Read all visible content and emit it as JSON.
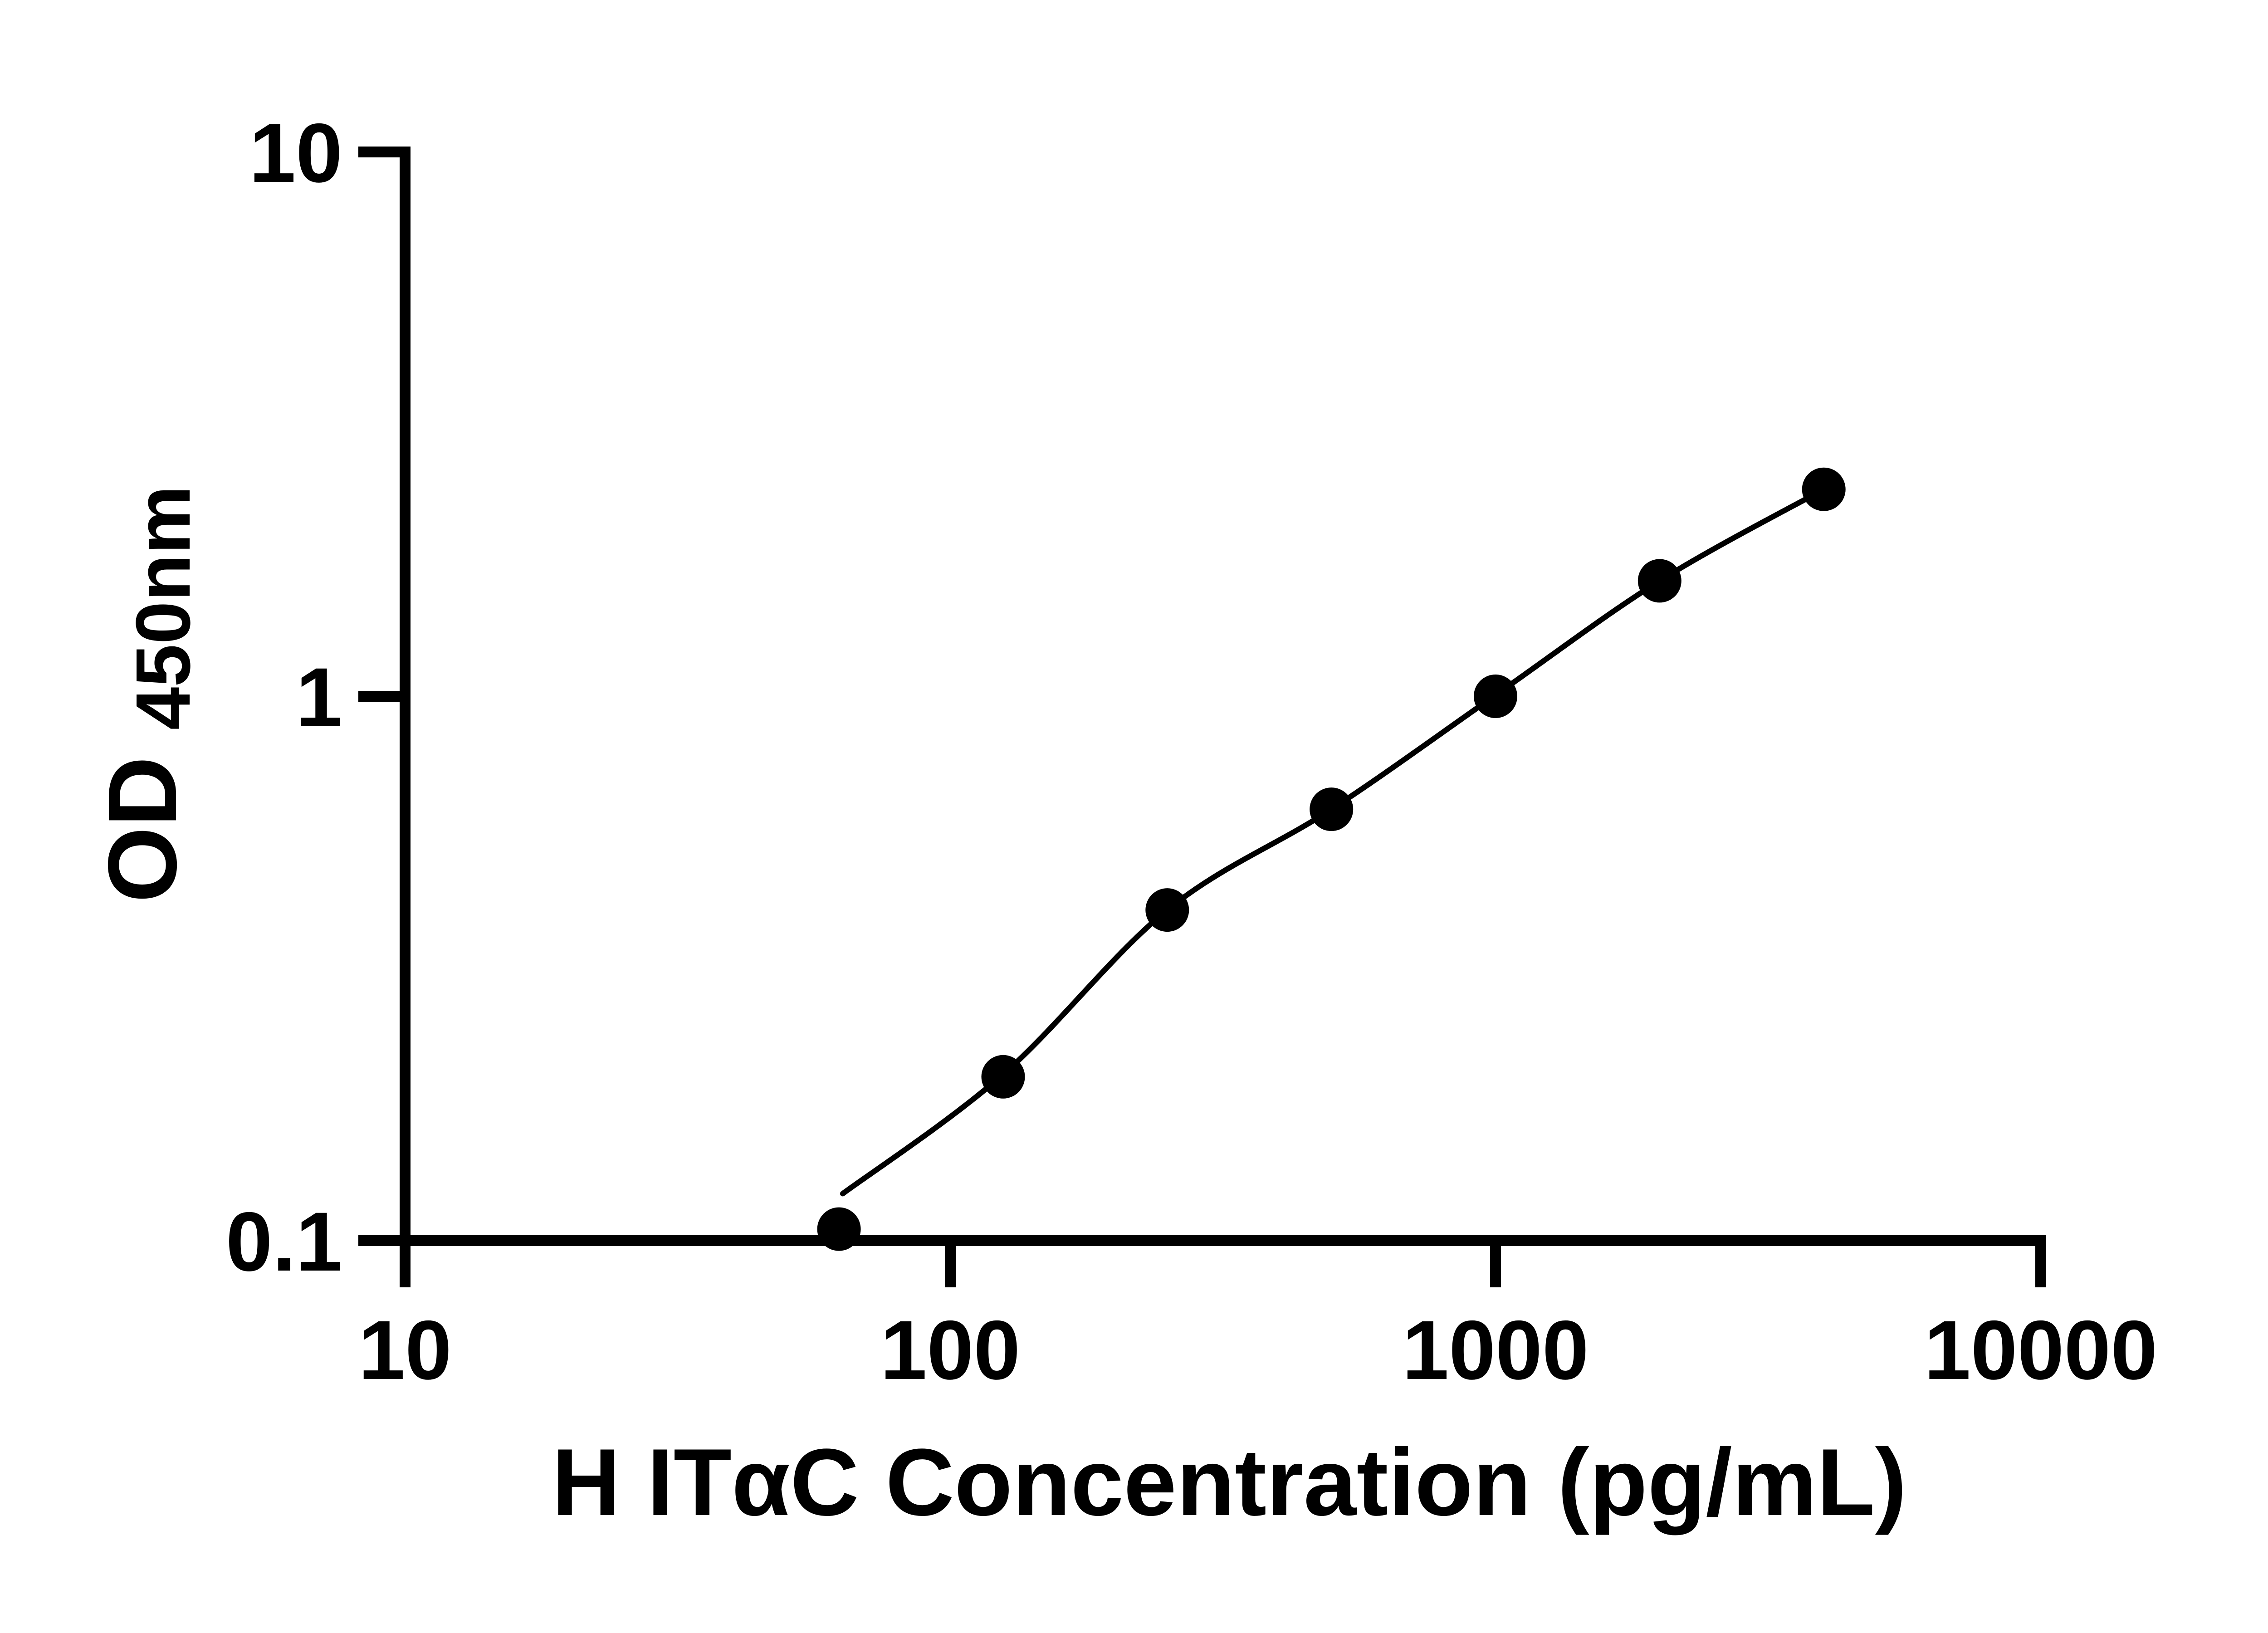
{
  "chart_data": {
    "type": "scatter",
    "title": "",
    "xlabel": "H ITαC Concentration (pg/mL)",
    "ylabel": "OD",
    "ylabel_subscript": "450nm",
    "x_scale": "log",
    "y_scale": "log",
    "xlim": [
      10,
      10000
    ],
    "ylim": [
      0.1,
      10
    ],
    "grid": false,
    "legend": null,
    "x_ticks": [
      {
        "value": 10,
        "label": "10"
      },
      {
        "value": 100,
        "label": "100"
      },
      {
        "value": 1000,
        "label": "1000"
      },
      {
        "value": 10000,
        "label": "10000"
      }
    ],
    "y_ticks": [
      {
        "value": 10,
        "label": "10"
      },
      {
        "value": 1,
        "label": "1"
      },
      {
        "value": 0.1,
        "label": "0.1"
      }
    ],
    "series": [
      {
        "name": "standard-curve-points",
        "marker": "filled-circle",
        "color": "#000000",
        "points": [
          {
            "x": 62.5,
            "y": 0.105
          },
          {
            "x": 125,
            "y": 0.2
          },
          {
            "x": 250,
            "y": 0.405
          },
          {
            "x": 500,
            "y": 0.62
          },
          {
            "x": 1000,
            "y": 1.0
          },
          {
            "x": 2000,
            "y": 1.63
          },
          {
            "x": 4000,
            "y": 2.4
          }
        ]
      }
    ],
    "fit_curve": {
      "description": "fitted standard curve; starts just above the lowest point and ends at the highest point",
      "color": "#000000",
      "through": [
        {
          "x": 63.5,
          "y": 0.122
        },
        {
          "x": 125,
          "y": 0.202
        },
        {
          "x": 250,
          "y": 0.405
        },
        {
          "x": 500,
          "y": 0.62
        },
        {
          "x": 1000,
          "y": 1.005
        },
        {
          "x": 2000,
          "y": 1.63
        },
        {
          "x": 4000,
          "y": 2.4
        }
      ]
    },
    "colors": {
      "foreground": "#000000",
      "background": "#ffffff"
    }
  }
}
